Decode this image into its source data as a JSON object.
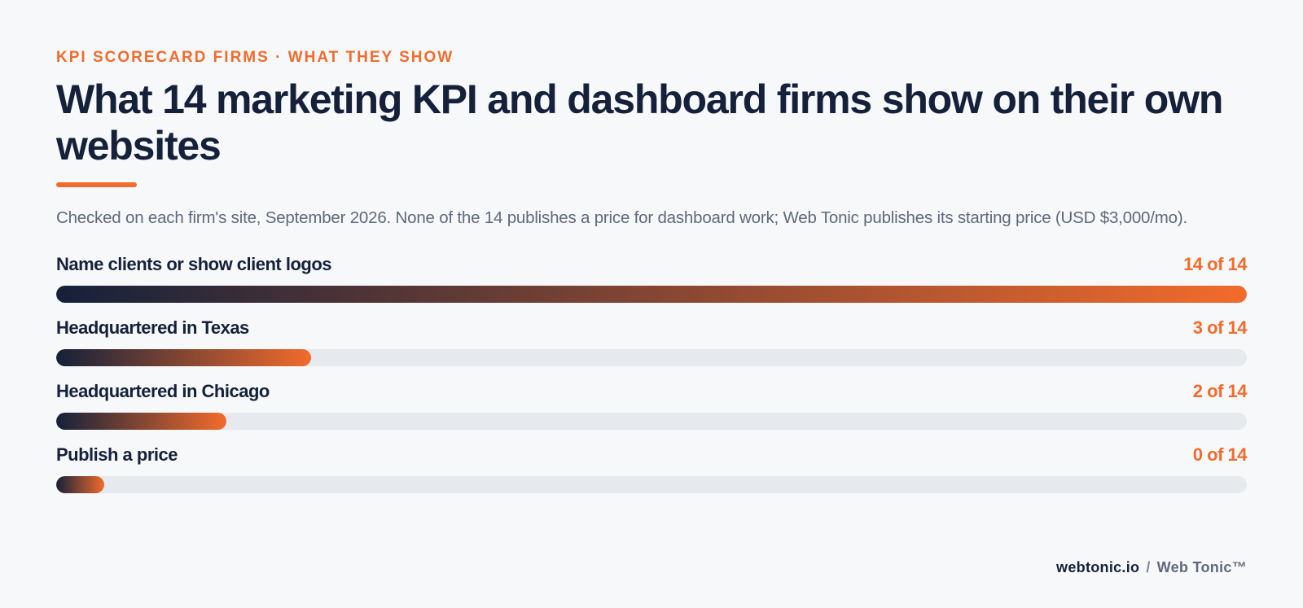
{
  "eyebrow": "KPI SCORECARD FIRMS · WHAT THEY SHOW",
  "title": "What 14 marketing KPI and dashboard firms show on their own websites",
  "subtitle": "Checked on each firm's site, September 2026. None of the 14 publishes a price for dashboard work; Web Tonic publishes its starting price (USD $3,000/mo).",
  "footer": {
    "domain": "webtonic.io",
    "separator": "/",
    "brand": "Web Tonic™"
  },
  "colors": {
    "accent": "#f26b2c",
    "navy": "#15213a",
    "track": "#e6e9ee",
    "background": "#f7f8fa"
  },
  "chart_data": {
    "type": "bar",
    "orientation": "horizontal",
    "total": 14,
    "categories": [
      "Name clients or show client logos",
      "Headquartered in Texas",
      "Headquartered in Chicago",
      "Publish a price"
    ],
    "values": [
      14,
      3,
      2,
      0
    ],
    "value_labels": [
      "14 of 14",
      "3 of 14",
      "2 of 14",
      "0 of 14"
    ],
    "xlim": [
      0,
      14
    ],
    "grid": false,
    "legend": "none"
  }
}
